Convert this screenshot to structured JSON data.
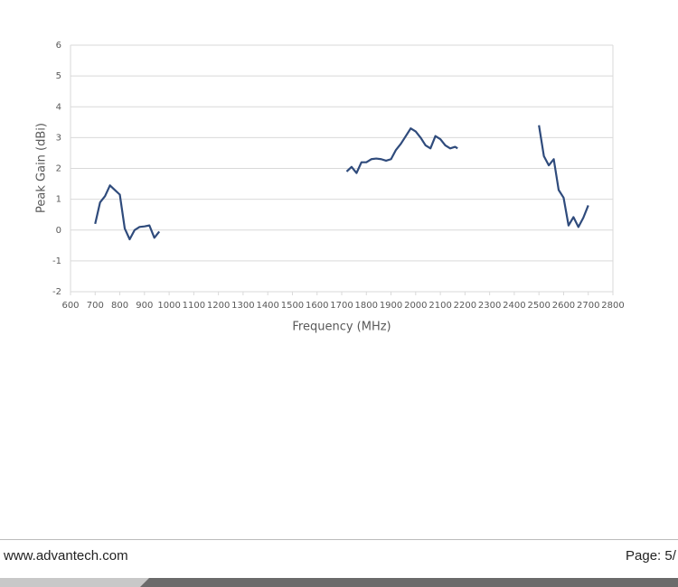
{
  "chart_data": {
    "type": "line",
    "xlabel": "Frequency (MHz)",
    "ylabel": "Peak Gain (dBi)",
    "x": [
      700,
      720,
      740,
      760,
      780,
      800,
      820,
      840,
      860,
      880,
      900,
      920,
      940,
      960,
      null,
      1720,
      1740,
      1760,
      1780,
      1800,
      1820,
      1840,
      1860,
      1880,
      1900,
      1920,
      1940,
      1960,
      1980,
      2000,
      2020,
      2040,
      2060,
      2080,
      2100,
      2120,
      2140,
      2160,
      2170,
      null,
      2500,
      2520,
      2540,
      2560,
      2580,
      2600,
      2620,
      2640,
      2660,
      2680,
      2700
    ],
    "series": [
      {
        "color": "#2f4b7c",
        "values": [
          0.2,
          0.9,
          1.1,
          1.45,
          1.3,
          1.15,
          0.05,
          -0.3,
          0.0,
          0.1,
          0.12,
          0.15,
          -0.25,
          -0.05,
          null,
          1.9,
          2.05,
          1.85,
          2.2,
          2.2,
          2.3,
          2.32,
          2.3,
          2.25,
          2.3,
          2.6,
          2.8,
          3.05,
          3.3,
          3.2,
          3.0,
          2.75,
          2.65,
          3.05,
          2.95,
          2.75,
          2.65,
          2.7,
          2.65,
          null,
          3.4,
          2.4,
          2.1,
          2.3,
          1.3,
          1.05,
          0.15,
          0.42,
          0.1,
          0.4,
          0.8
        ]
      }
    ],
    "xlim": [
      600,
      2800
    ],
    "xticks": [
      600,
      700,
      800,
      900,
      1000,
      1100,
      1200,
      1300,
      1400,
      1500,
      1600,
      1700,
      1800,
      1900,
      2000,
      2100,
      2200,
      2300,
      2400,
      2500,
      2600,
      2700,
      2800
    ],
    "ylim": [
      -2,
      6
    ],
    "yticks": [
      -2,
      -1,
      0,
      1,
      2,
      3,
      4,
      5,
      6
    ],
    "grid": true
  },
  "footer": {
    "url": "www.advantech.com",
    "page": "Page: 5/"
  }
}
